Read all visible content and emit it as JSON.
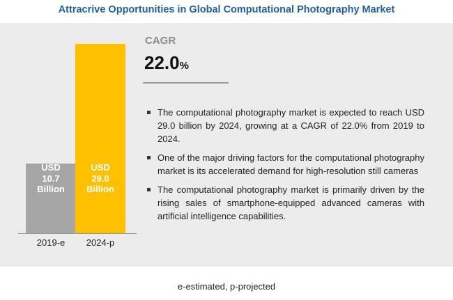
{
  "title": "Attracrive Opportunities in Global Computational Photography Market",
  "cagr": {
    "label": "CAGR",
    "value": "22.0",
    "unit": "%"
  },
  "bullets": [
    "The computational photography market is expected to reach USD 29.0 billion by 2024, growing at a CAGR of 22.0% from 2019 to 2024.",
    "One of the major driving factors for the computational photography market is its accelerated demand for high-resolution still cameras",
    "The computational photography market is primarily driven by the rising sales of smartphone-equipped advanced cameras with artificial intelligence capabilities."
  ],
  "footnote": "e-estimated, p-projected",
  "colors": {
    "bar_2019": "#a6a6a6",
    "bar_2024": "#ffc000",
    "title": "#1f5fa8",
    "panel": "#ececec"
  },
  "chart_data": {
    "type": "bar",
    "categories": [
      "2019-e",
      "2024-p"
    ],
    "values": [
      10.7,
      29.0
    ],
    "bar_labels": [
      "USD\n10.7\nBillion",
      "USD\n29.0\nBillion"
    ],
    "title": "Attracrive Opportunities in Global Computational Photography Market",
    "xlabel": "",
    "ylabel": "",
    "grid": false
  }
}
